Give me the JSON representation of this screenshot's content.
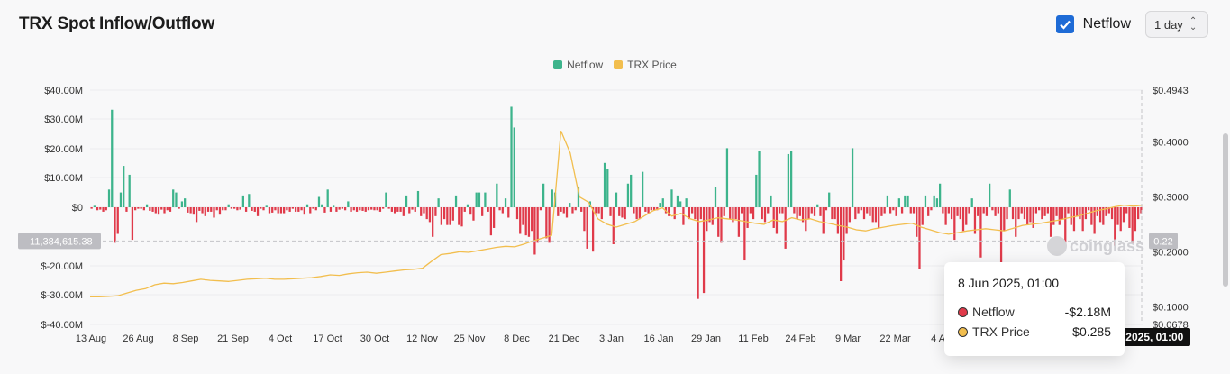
{
  "header": {
    "title": "TRX Spot Inflow/Outflow",
    "netflow_checkbox_label": "Netflow",
    "interval_value": "1 day"
  },
  "legend": [
    {
      "label": "Netflow",
      "color": "#3db48c"
    },
    {
      "label": "TRX Price",
      "color": "#f2be4e"
    }
  ],
  "crosshair": {
    "y_label": "-11,384,615.38",
    "price_label": "0.22",
    "x_label": "8 Jun 2025, 01:00"
  },
  "tooltip": {
    "date": "8 Jun 2025, 01:00",
    "rows": [
      {
        "name": "Netflow",
        "value": "-$2.18M",
        "dot_color": "#e03a4a"
      },
      {
        "name": "TRX Price",
        "value": "$0.285",
        "dot_color": "#f2be4e"
      }
    ]
  },
  "watermark": "coinglass",
  "chart_data": {
    "type": "bar",
    "left_axis": {
      "ticks": [
        "$40.00M",
        "$30.00M",
        "$20.00M",
        "$10.00M",
        "$0",
        "$-20.00M",
        "$-30.00M",
        "$-40.00M"
      ],
      "ylim": [
        -40,
        40
      ],
      "unit": "M"
    },
    "right_axis": {
      "ticks": [
        "$0.4943",
        "$0.4000",
        "$0.3000",
        "$0.2000",
        "$0.1000",
        "$0.0678"
      ],
      "ylim": [
        0.0678,
        0.4943
      ]
    },
    "x_ticks": [
      "13 Aug",
      "26 Aug",
      "8 Sep",
      "21 Sep",
      "4 Oct",
      "17 Oct",
      "30 Oct",
      "12 Nov",
      "25 Nov",
      "8 Dec",
      "21 Dec",
      "3 Jan",
      "16 Jan",
      "29 Jan",
      "11 Feb",
      "24 Feb",
      "9 Mar",
      "22 Mar",
      "4 Apr"
    ],
    "colors": {
      "positive": "#3db48c",
      "negative": "#e03a4a",
      "price": "#f2be4e"
    },
    "netflow_start": "13 Aug",
    "netflow": [
      -0.5,
      0.5,
      -1.0,
      -0.8,
      -1.5,
      -1.0,
      6,
      33,
      -12,
      -9,
      5,
      14,
      -1.5,
      11,
      -11,
      -1,
      -0.5,
      -0.5,
      -1,
      1,
      -1.2,
      -1.5,
      -2,
      -2.5,
      -0.8,
      -2,
      -1,
      -1.5,
      6,
      5,
      -0.5,
      2,
      3,
      -1.8,
      -2,
      -2.5,
      -5,
      -1.2,
      -2,
      -3,
      -1.5,
      -1.5,
      -3.5,
      -1,
      -2.5,
      -1,
      -1,
      1,
      -0.5,
      -0.5,
      -1,
      -0.8,
      4,
      -1.5,
      4.5,
      -1.2,
      -1.5,
      -3,
      -0.5,
      -1,
      0.5,
      -2,
      -1.8,
      -1,
      -2,
      -2,
      -2,
      -1,
      -1.5,
      -0.5,
      -1.5,
      -1.5,
      -1,
      -2.5,
      1,
      -2,
      -0.5,
      -1,
      3.5,
      1,
      -1.8,
      6,
      -1.5,
      0.5,
      -1.5,
      -0.8,
      -0.5,
      -1,
      2,
      -1.5,
      -1,
      -1.5,
      -1,
      -1.2,
      -1.5,
      -1,
      -0.8,
      -1,
      -1,
      -1.5,
      -0.5,
      5,
      -0.5,
      -1.5,
      -2,
      -1.5,
      -1.5,
      -3,
      4,
      -2,
      -0.8,
      -1.5,
      5.5,
      -3,
      -2,
      -4,
      -5,
      -10,
      -3,
      3,
      -6,
      -4,
      -6,
      -6,
      -4.5,
      4,
      -6,
      -6.5,
      -1.5,
      1,
      -2.5,
      -4.5,
      5,
      5,
      -3,
      5,
      -1.5,
      -9.5,
      -7,
      8,
      -1,
      -2,
      3,
      -3.5,
      34,
      27,
      -4,
      -9,
      -6,
      -9.5,
      -10,
      -8,
      -16,
      -12,
      -1,
      8,
      -10.5,
      -12,
      6,
      5,
      -3,
      -1.5,
      -2,
      -3.5,
      1.5,
      -2,
      -1,
      7,
      -1.5,
      -8,
      -14,
      2,
      -15,
      -2,
      -2,
      -4,
      15,
      13,
      -3,
      -12.5,
      5,
      -3,
      -3.5,
      -4,
      8,
      11,
      -2,
      -4,
      -4,
      12,
      -1.5,
      -2,
      -1,
      -1,
      -1,
      1.5,
      3,
      -2,
      -3,
      6,
      -4,
      4,
      2,
      -6,
      3,
      -4,
      -2,
      -4,
      -31,
      -4,
      -29,
      -8,
      -5,
      -6,
      7,
      -10,
      -12,
      -3,
      20,
      -4,
      -5,
      -4,
      -10,
      -2,
      -18,
      -7,
      -2,
      -4,
      11,
      19,
      -4,
      -5,
      -2,
      4,
      -7,
      -9,
      -2,
      -2,
      -14,
      18,
      19,
      -2,
      -4,
      -3,
      -5,
      -8,
      -4,
      -2,
      -3,
      1,
      -3,
      -9,
      -1,
      5,
      -4,
      -4,
      -9,
      -25,
      -18,
      -9,
      -5,
      20,
      -4,
      -2,
      -1,
      -4,
      -2,
      -3,
      -5,
      -5,
      -7,
      -3,
      -2,
      4,
      -2,
      -1,
      -3,
      3,
      -2,
      4,
      4,
      -2,
      -2,
      -10,
      -21,
      -6,
      4,
      -3,
      -1,
      4,
      3,
      8,
      -2,
      -6,
      -2,
      -4,
      -11,
      -3,
      -4,
      -8,
      -6,
      -2,
      3,
      -9,
      -3,
      -17,
      -2,
      -3,
      8,
      -1,
      -3,
      -2,
      -21,
      -8,
      -4,
      6,
      -4,
      -10,
      -4,
      -2,
      -4,
      -6,
      -5,
      -7,
      -2,
      -1,
      -4,
      -3,
      -2,
      -10,
      -6,
      -3,
      -6,
      -4,
      -12,
      -2,
      -6,
      -8,
      -3,
      -4,
      -8,
      -4,
      -1,
      -6,
      -9,
      -3,
      -5,
      -6,
      -3,
      -2,
      -4,
      -13,
      -6,
      -8,
      -5,
      -2,
      -7,
      -12,
      -8,
      -4,
      -2
    ],
    "price": [
      0.118,
      0.118,
      0.119,
      0.12,
      0.125,
      0.13,
      0.133,
      0.14,
      0.143,
      0.142,
      0.144,
      0.147,
      0.15,
      0.148,
      0.147,
      0.146,
      0.148,
      0.15,
      0.151,
      0.152,
      0.15,
      0.15,
      0.151,
      0.152,
      0.153,
      0.155,
      0.158,
      0.157,
      0.16,
      0.162,
      0.163,
      0.161,
      0.163,
      0.165,
      0.167,
      0.168,
      0.17,
      0.183,
      0.195,
      0.197,
      0.2,
      0.199,
      0.202,
      0.205,
      0.208,
      0.21,
      0.209,
      0.214,
      0.22,
      0.225,
      0.23,
      0.42,
      0.38,
      0.3,
      0.29,
      0.26,
      0.25,
      0.245,
      0.25,
      0.255,
      0.265,
      0.275,
      0.28,
      0.265,
      0.27,
      0.26,
      0.255,
      0.258,
      0.262,
      0.26,
      0.258,
      0.255,
      0.252,
      0.25,
      0.258,
      0.255,
      0.262,
      0.258,
      0.26,
      0.255,
      0.252,
      0.248,
      0.245,
      0.24,
      0.238,
      0.242,
      0.245,
      0.248,
      0.25,
      0.252,
      0.245,
      0.24,
      0.235,
      0.232,
      0.235,
      0.238,
      0.24,
      0.242,
      0.24,
      0.238,
      0.243,
      0.248,
      0.25,
      0.252,
      0.255,
      0.258,
      0.262,
      0.265,
      0.27,
      0.275,
      0.278,
      0.282,
      0.285,
      0.283,
      0.285
    ]
  }
}
